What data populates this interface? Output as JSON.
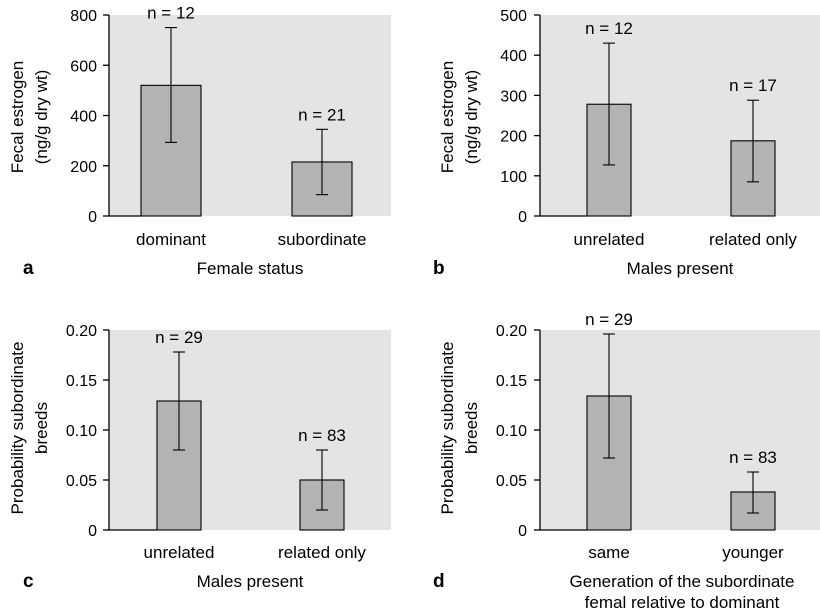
{
  "chart_data": [
    {
      "id": "a",
      "type": "bar",
      "panel_label": "a",
      "categories": [
        "dominant",
        "subordinate"
      ],
      "values": [
        520,
        215
      ],
      "error_low": [
        293,
        85
      ],
      "error_high": [
        750,
        345
      ],
      "n_labels": [
        "n = 12",
        "n = 21"
      ],
      "xlabel": "Female status",
      "ylabel": [
        "Fecal estrogen",
        "(ng/g dry wt)"
      ],
      "ylim": [
        0,
        800
      ],
      "yticks": [
        "0",
        "200",
        "400",
        "600",
        "800"
      ],
      "grid": false,
      "background": "#e4e4e4",
      "bar_color": "#b3b3b3"
    },
    {
      "id": "b",
      "type": "bar",
      "panel_label": "b",
      "categories": [
        "unrelated",
        "related only"
      ],
      "values": [
        278,
        187
      ],
      "error_low": [
        127,
        85
      ],
      "error_high": [
        430,
        288
      ],
      "n_labels": [
        "n = 12",
        "n = 17"
      ],
      "xlabel": "Males present",
      "ylabel": [
        "Fecal estrogen",
        "(ng/g dry wt)"
      ],
      "ylim": [
        0,
        500
      ],
      "yticks": [
        "0",
        "100",
        "200",
        "300",
        "400",
        "500"
      ],
      "grid": false,
      "background": "#e4e4e4",
      "bar_color": "#b3b3b3"
    },
    {
      "id": "c",
      "type": "bar",
      "panel_label": "c",
      "categories": [
        "unrelated",
        "related only"
      ],
      "values": [
        0.129,
        0.05
      ],
      "error_low": [
        0.08,
        0.02
      ],
      "error_high": [
        0.178,
        0.08
      ],
      "n_labels": [
        "n = 29",
        "n = 83"
      ],
      "xlabel": "Males present",
      "ylabel": [
        "Probability subordinate",
        "breeds"
      ],
      "ylim": [
        0,
        0.2
      ],
      "yticks": [
        "0",
        "0.05",
        "0.10",
        "0.15",
        "0.20"
      ],
      "grid": false,
      "background": "#e4e4e4",
      "bar_color": "#b3b3b3"
    },
    {
      "id": "d",
      "type": "bar",
      "panel_label": "d",
      "categories": [
        "same",
        "younger"
      ],
      "values": [
        0.134,
        0.038
      ],
      "error_low": [
        0.072,
        0.017
      ],
      "error_high": [
        0.196,
        0.058
      ],
      "n_labels": [
        "n = 29",
        "n = 83"
      ],
      "xlabel": [
        "Generation of the subordinate",
        "femal relative to dominant"
      ],
      "ylabel": [
        "Probability subordinate",
        "breeds"
      ],
      "ylim": [
        0,
        0.2
      ],
      "yticks": [
        "0",
        "0.05",
        "0.10",
        "0.15",
        "0.20"
      ],
      "grid": false,
      "background": "#e4e4e4",
      "bar_color": "#b3b3b3"
    }
  ]
}
